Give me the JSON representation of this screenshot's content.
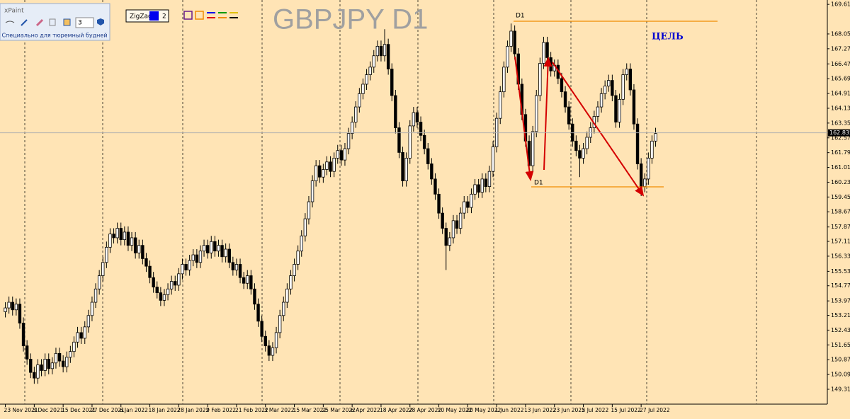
{
  "chart_data": {
    "type": "candlestick",
    "title": "GBPJPY D1",
    "categories": [
      "23 Nov 2021",
      null,
      null,
      null,
      null,
      null,
      null,
      null,
      "3 Dec 2021",
      null,
      null,
      null,
      null,
      null,
      null,
      null,
      "15 Dec 2021",
      null,
      null,
      null,
      null,
      null,
      null,
      null,
      "27 Dec 2021",
      null,
      null,
      null,
      null,
      null,
      null,
      null,
      "6 Jan 2022",
      null,
      null,
      null,
      null,
      null,
      null,
      null,
      "18 Jan 2022",
      null,
      null,
      null,
      null,
      null,
      null,
      null,
      "28 Jan 2022",
      null,
      null,
      null,
      null,
      null,
      null,
      null,
      "9 Feb 2022",
      null,
      null,
      null,
      null,
      null,
      null,
      null,
      "21 Feb 2022",
      null,
      null,
      null,
      null,
      null,
      null,
      null,
      "3 Mar 2022",
      null,
      null,
      null,
      null,
      null,
      null,
      null,
      "15 Mar 2022",
      null,
      null,
      null,
      null,
      null,
      null,
      null,
      "25 Mar 2022",
      null,
      null,
      null,
      null,
      null,
      null,
      null,
      "6 Apr 2022",
      null,
      null,
      null,
      null,
      null,
      null,
      null,
      "18 Apr 2022",
      null,
      null,
      null,
      null,
      null,
      null,
      null,
      "28 Apr 2022",
      null,
      null,
      null,
      null,
      null,
      null,
      null,
      "10 May 2022",
      null,
      null,
      null,
      null,
      null,
      null,
      null,
      "20 May 2022",
      null,
      null,
      null,
      null,
      null,
      null,
      null,
      "1 Jun 2022",
      null,
      null,
      null,
      null,
      null,
      null,
      null,
      "13 Jun 2022",
      null,
      null,
      null,
      null,
      null,
      null,
      null,
      "23 Jun 2022",
      null,
      null,
      null,
      null,
      null,
      null,
      null,
      "5 Jul 2022",
      null,
      null,
      null,
      null,
      null,
      null,
      null,
      "15 Jul 2022",
      null,
      null,
      null,
      null,
      null,
      null,
      null,
      "27 Jul 2022",
      null,
      null,
      null,
      null
    ],
    "open": [
      153.4,
      153.6,
      153.9,
      153.5,
      153.8,
      152.8,
      151.6,
      150.9,
      150.2,
      149.9,
      150.6,
      150.3,
      150.9,
      150.4,
      150.7,
      151.2,
      150.8,
      150.5,
      151.0,
      151.3,
      151.8,
      152.3,
      152.0,
      152.6,
      153.2,
      153.9,
      154.6,
      155.3,
      156.0,
      156.8,
      157.5,
      157.3,
      157.8,
      157.2,
      157.6,
      156.9,
      157.3,
      156.5,
      156.9,
      156.2,
      155.8,
      155.2,
      154.7,
      154.4,
      154.0,
      154.3,
      154.6,
      155.0,
      154.8,
      155.4,
      155.9,
      155.6,
      156.1,
      156.4,
      156.0,
      156.6,
      156.9,
      156.5,
      157.1,
      156.6,
      156.9,
      156.3,
      156.7,
      156.0,
      155.6,
      155.9,
      155.2,
      154.9,
      155.3,
      154.6,
      153.8,
      152.9,
      152.1,
      151.6,
      151.1,
      151.5,
      152.3,
      153.2,
      153.9,
      154.6,
      155.3,
      155.9,
      156.6,
      157.4,
      158.3,
      159.2,
      160.3,
      161.1,
      160.5,
      160.9,
      161.3,
      160.8,
      161.5,
      161.9,
      161.4,
      162.0,
      162.8,
      163.4,
      164.2,
      164.9,
      165.4,
      165.9,
      166.3,
      166.9,
      167.4,
      166.9,
      167.5,
      166.2,
      164.8,
      163.1,
      161.8,
      160.3,
      161.5,
      163.2,
      163.9,
      163.4,
      162.7,
      162.0,
      161.2,
      160.4,
      159.6,
      158.6,
      157.8,
      156.9,
      157.3,
      158.2,
      157.8,
      158.6,
      159.2,
      158.9,
      159.6,
      160.1,
      159.7,
      160.4,
      160.0,
      160.8,
      162.1,
      163.6,
      165.0,
      166.3,
      167.4,
      168.2,
      167.0,
      165.4,
      163.8,
      162.4,
      161.1,
      162.9,
      164.8,
      166.5,
      167.6,
      166.8,
      166.1,
      166.4,
      165.7,
      165.0,
      164.2,
      163.3,
      162.4,
      161.9,
      161.5,
      162.0,
      162.6,
      163.1,
      163.7,
      164.2,
      164.9,
      165.3,
      165.6,
      164.8,
      163.4,
      164.6,
      165.9,
      166.2,
      165.1,
      163.3,
      161.2,
      160.0,
      160.4,
      161.5,
      162.4
    ],
    "high": [
      153.9,
      154.2,
      154.2,
      154.1,
      154.1,
      153.1,
      151.9,
      151.2,
      150.5,
      150.9,
      150.9,
      151.2,
      151.2,
      151.0,
      151.5,
      151.5,
      151.1,
      151.3,
      151.6,
      152.1,
      152.6,
      152.6,
      152.9,
      153.5,
      154.2,
      154.9,
      155.6,
      156.3,
      157.1,
      157.8,
      157.8,
      158.1,
      158.1,
      157.9,
      157.9,
      157.6,
      157.6,
      157.2,
      157.2,
      156.5,
      156.1,
      155.5,
      155.0,
      154.7,
      154.6,
      154.9,
      155.3,
      155.3,
      155.7,
      156.2,
      156.2,
      156.4,
      156.7,
      156.7,
      156.9,
      157.2,
      157.2,
      157.4,
      157.4,
      157.2,
      157.2,
      157.0,
      157.0,
      156.3,
      156.2,
      156.2,
      155.5,
      155.6,
      155.6,
      154.9,
      154.1,
      153.2,
      152.4,
      151.9,
      151.8,
      152.6,
      153.5,
      154.2,
      154.9,
      155.6,
      156.2,
      156.9,
      157.7,
      158.6,
      159.5,
      160.6,
      161.4,
      161.4,
      161.2,
      161.6,
      161.6,
      161.8,
      162.2,
      162.2,
      162.3,
      163.1,
      163.7,
      164.5,
      165.2,
      165.7,
      166.2,
      166.6,
      167.2,
      167.7,
      167.7,
      168.3,
      167.8,
      166.5,
      165.1,
      163.4,
      162.1,
      161.8,
      163.5,
      164.2,
      164.2,
      163.7,
      163.0,
      162.3,
      161.5,
      160.7,
      159.9,
      158.9,
      158.1,
      157.6,
      158.5,
      158.5,
      158.9,
      159.5,
      159.5,
      159.9,
      160.4,
      160.4,
      160.7,
      160.7,
      161.1,
      162.4,
      163.9,
      165.3,
      166.6,
      167.7,
      168.6,
      168.5,
      167.3,
      165.7,
      164.1,
      162.7,
      163.2,
      165.1,
      166.8,
      167.9,
      167.9,
      167.1,
      166.7,
      166.7,
      166.0,
      165.3,
      164.5,
      163.6,
      162.7,
      162.2,
      162.3,
      162.9,
      163.4,
      164.0,
      164.5,
      165.2,
      165.6,
      165.9,
      165.9,
      165.1,
      164.9,
      166.2,
      166.5,
      166.5,
      165.4,
      163.6,
      161.5,
      160.7,
      161.8,
      162.7,
      163.1
    ],
    "low": [
      153.1,
      153.3,
      153.2,
      153.2,
      152.5,
      151.3,
      150.6,
      149.9,
      149.6,
      149.6,
      150.0,
      150.0,
      150.1,
      150.1,
      150.4,
      150.5,
      150.2,
      150.2,
      150.7,
      151.0,
      151.5,
      151.7,
      151.7,
      152.3,
      152.9,
      153.6,
      154.3,
      155.0,
      155.7,
      156.5,
      157.0,
      157.0,
      156.9,
      156.9,
      156.6,
      156.6,
      156.2,
      156.2,
      155.9,
      155.5,
      154.9,
      154.4,
      154.1,
      153.7,
      153.7,
      154.0,
      154.3,
      154.5,
      154.5,
      155.1,
      155.3,
      155.3,
      155.8,
      155.7,
      155.7,
      156.3,
      156.2,
      156.2,
      156.3,
      156.3,
      156.0,
      156.0,
      155.7,
      155.3,
      155.3,
      154.9,
      154.6,
      154.6,
      154.3,
      153.5,
      152.6,
      151.8,
      151.3,
      150.8,
      150.8,
      151.2,
      152.0,
      152.9,
      153.6,
      154.3,
      155.0,
      155.6,
      156.3,
      157.1,
      158.0,
      158.9,
      160.0,
      160.2,
      160.2,
      160.6,
      160.5,
      160.5,
      161.2,
      161.1,
      161.1,
      161.7,
      162.5,
      163.1,
      163.9,
      164.6,
      165.1,
      165.6,
      166.0,
      166.6,
      166.6,
      166.6,
      165.9,
      164.5,
      162.8,
      161.5,
      160.0,
      160.0,
      161.2,
      162.9,
      163.1,
      162.4,
      161.7,
      160.9,
      160.1,
      159.3,
      158.3,
      157.5,
      155.6,
      156.6,
      157.0,
      157.5,
      157.5,
      158.3,
      158.6,
      158.6,
      159.3,
      159.4,
      159.4,
      159.7,
      159.7,
      160.5,
      161.8,
      163.3,
      164.7,
      166.0,
      167.1,
      166.7,
      165.1,
      163.5,
      162.1,
      160.8,
      160.8,
      162.6,
      164.5,
      166.2,
      166.5,
      165.8,
      165.8,
      165.4,
      164.7,
      163.9,
      163.0,
      162.1,
      161.6,
      160.5,
      161.2,
      161.7,
      162.3,
      162.8,
      163.4,
      163.9,
      164.6,
      165.0,
      164.5,
      163.1,
      163.1,
      164.3,
      165.6,
      164.8,
      163.0,
      160.9,
      159.5,
      159.7,
      160.1,
      161.2,
      162.1
    ],
    "close": [
      153.6,
      153.9,
      153.5,
      153.8,
      152.8,
      151.6,
      150.9,
      150.2,
      149.9,
      150.6,
      150.3,
      150.9,
      150.4,
      150.7,
      151.2,
      150.8,
      150.5,
      151.0,
      151.3,
      151.8,
      152.3,
      152.0,
      152.6,
      153.2,
      153.9,
      154.6,
      155.3,
      156.0,
      156.8,
      157.5,
      157.3,
      157.8,
      157.2,
      157.6,
      156.9,
      157.3,
      156.5,
      156.9,
      156.2,
      155.8,
      155.2,
      154.7,
      154.4,
      154.0,
      154.3,
      154.6,
      155.0,
      154.8,
      155.4,
      155.9,
      155.6,
      156.1,
      156.4,
      156.0,
      156.6,
      156.9,
      156.5,
      157.1,
      156.6,
      156.9,
      156.3,
      156.7,
      156.0,
      155.6,
      155.9,
      155.2,
      154.9,
      155.3,
      154.6,
      153.8,
      152.9,
      152.1,
      151.6,
      151.1,
      151.5,
      152.3,
      153.2,
      153.9,
      154.6,
      155.3,
      155.9,
      156.6,
      157.4,
      158.3,
      159.2,
      160.3,
      161.1,
      160.5,
      160.9,
      161.3,
      160.8,
      161.5,
      161.9,
      161.4,
      162.0,
      162.8,
      163.4,
      164.2,
      164.9,
      165.4,
      165.9,
      166.3,
      166.9,
      167.4,
      166.9,
      167.5,
      166.2,
      164.8,
      163.1,
      161.8,
      160.3,
      161.5,
      163.2,
      163.9,
      163.4,
      162.7,
      162.0,
      161.2,
      160.4,
      159.6,
      158.6,
      157.8,
      156.9,
      157.3,
      158.2,
      157.8,
      158.6,
      159.2,
      158.9,
      159.6,
      160.1,
      159.7,
      160.4,
      160.0,
      160.8,
      162.1,
      163.6,
      165.0,
      166.3,
      167.4,
      168.2,
      167.0,
      165.4,
      163.8,
      162.4,
      161.1,
      162.9,
      164.8,
      166.5,
      167.6,
      166.8,
      166.1,
      166.4,
      165.7,
      165.0,
      164.2,
      163.3,
      162.4,
      161.9,
      161.5,
      162.0,
      162.6,
      163.1,
      163.7,
      164.2,
      164.9,
      165.3,
      165.6,
      164.8,
      163.4,
      164.6,
      165.9,
      166.2,
      165.1,
      163.3,
      161.2,
      160.0,
      160.4,
      161.5,
      162.4,
      162.8
    ],
    "up_color": "#ffffff",
    "down_color": "#000000",
    "line_color": "#000000",
    "ylim": [
      148.265,
      169.84
    ],
    "yticks": [
      {
        "value": 169.61,
        "label": "169.610"
      },
      {
        "value": 168.05,
        "label": "168.050"
      },
      {
        "value": 167.27,
        "label": "167.270"
      },
      {
        "value": 166.47,
        "label": "166.470"
      },
      {
        "value": 165.69,
        "label": "165.690"
      },
      {
        "value": 164.91,
        "label": "164.910"
      },
      {
        "value": 164.13,
        "label": "164.130"
      },
      {
        "value": 163.35,
        "label": "163.350"
      },
      {
        "value": 162.57,
        "label": "162.570"
      },
      {
        "value": 161.79,
        "label": "161.790"
      },
      {
        "value": 161.01,
        "label": "161.010"
      },
      {
        "value": 160.23,
        "label": "160.230"
      },
      {
        "value": 159.45,
        "label": "159.450"
      },
      {
        "value": 158.67,
        "label": "158.670"
      },
      {
        "value": 157.87,
        "label": "157.870"
      },
      {
        "value": 157.11,
        "label": "157.110"
      },
      {
        "value": 156.33,
        "label": "156.330"
      },
      {
        "value": 155.53,
        "label": "155.530"
      },
      {
        "value": 154.77,
        "label": "154.770"
      },
      {
        "value": 153.97,
        "label": "153.970"
      },
      {
        "value": 153.21,
        "label": "153.210"
      },
      {
        "value": 152.43,
        "label": "152.430"
      },
      {
        "value": 151.65,
        "label": "151.650"
      },
      {
        "value": 150.87,
        "label": "150.870"
      },
      {
        "value": 150.09,
        "label": "150.090"
      },
      {
        "value": 149.31,
        "label": "149.310"
      }
    ],
    "current_price": 162.835,
    "annotations": [
      "D1",
      "D1",
      "ЦЕЛЬ"
    ]
  },
  "ui": {
    "panel_title": "xPaint",
    "width_value": "3",
    "panel_caption": "Специально для тюремный будней",
    "indicator": "ZigZag",
    "indicator_value": "2"
  }
}
